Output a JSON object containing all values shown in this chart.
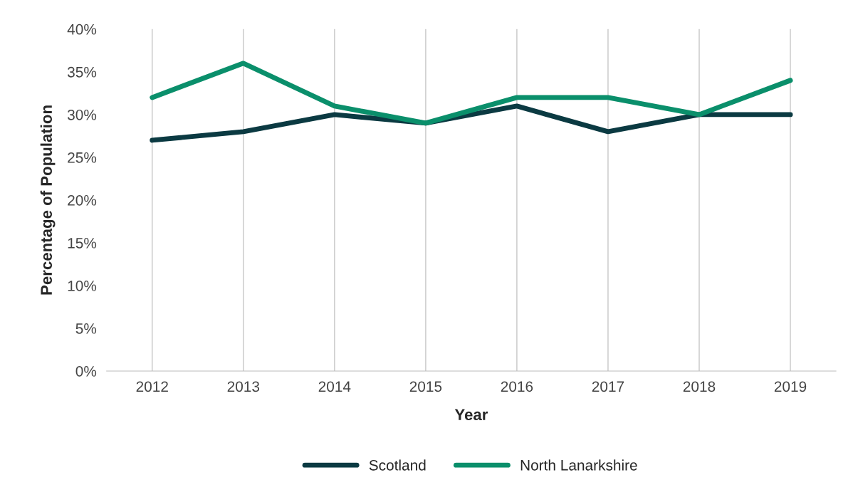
{
  "chart_data": {
    "type": "line",
    "xlabel": "Year",
    "ylabel": "Percentage of Population",
    "categories": [
      "2012",
      "2013",
      "2014",
      "2015",
      "2016",
      "2017",
      "2018",
      "2019"
    ],
    "series": [
      {
        "name": "Scotland",
        "color": "#0b3a42",
        "values": [
          27,
          28,
          30,
          29,
          31,
          28,
          30,
          30
        ]
      },
      {
        "name": "North Lanarkshire",
        "color": "#0a8f6b",
        "values": [
          32,
          36,
          31,
          29,
          32,
          32,
          30,
          34
        ]
      }
    ],
    "ylim": [
      0,
      40
    ],
    "yticks": [
      {
        "value": 0,
        "label": "0%"
      },
      {
        "value": 5,
        "label": "5%"
      },
      {
        "value": 10,
        "label": "10%"
      },
      {
        "value": 15,
        "label": "15%"
      },
      {
        "value": 20,
        "label": "20%"
      },
      {
        "value": 25,
        "label": "25%"
      },
      {
        "value": 30,
        "label": "30%"
      },
      {
        "value": 35,
        "label": "35%"
      },
      {
        "value": 40,
        "label": "40%"
      }
    ],
    "grid": "x",
    "legend": "bottom",
    "marker": "none",
    "line_style": "solid"
  }
}
